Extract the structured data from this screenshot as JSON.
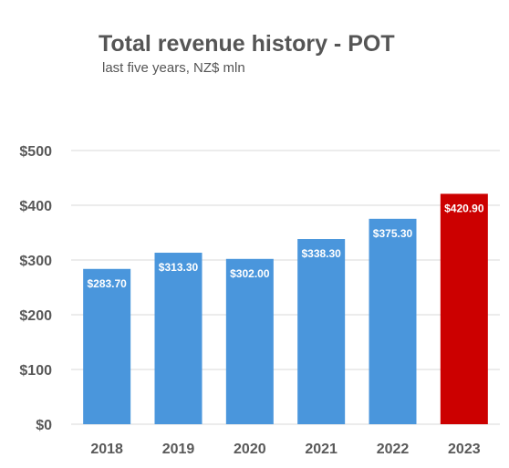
{
  "chart_data": {
    "type": "bar",
    "title": "Total revenue history - POT",
    "subtitle": "last five years, NZ$ mln",
    "categories": [
      "2018",
      "2019",
      "2020",
      "2021",
      "2022",
      "2023"
    ],
    "values": [
      283.7,
      313.3,
      302.0,
      338.3,
      375.3,
      420.9
    ],
    "data_labels": [
      "$283.70",
      "$313.30",
      "$302.00",
      "$338.30",
      "$375.30",
      "$420.90"
    ],
    "ylim": [
      0,
      500
    ],
    "yticks": [
      0,
      100,
      200,
      300,
      400,
      500
    ],
    "ytick_labels": [
      "$0",
      "$100",
      "$200",
      "$300",
      "$400",
      "$500"
    ],
    "xlabel": "",
    "ylabel": "",
    "grid": true,
    "colors": {
      "default_bar": "#4a96dc",
      "highlight_bar": "#cc0000",
      "gridline": "#d9d9d9",
      "axis_text": "#595959",
      "title_text": "#555555"
    },
    "highlight_category": "2023"
  }
}
